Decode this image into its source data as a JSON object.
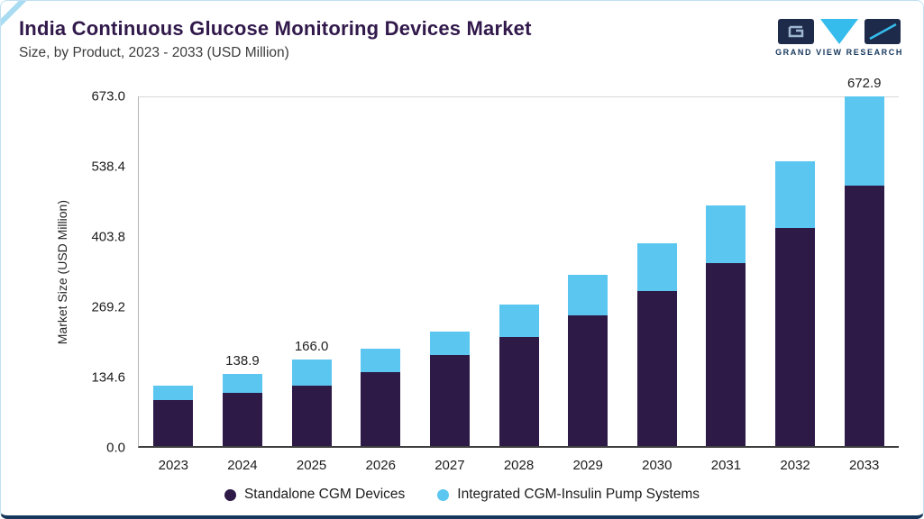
{
  "header": {
    "title": "India Continuous Glucose Monitoring Devices Market",
    "subtitle": "Size, by Product, 2023 - 2033 (USD Million)"
  },
  "logo": {
    "text": "GRAND VIEW RESEARCH"
  },
  "chart_data": {
    "type": "bar",
    "stacked": true,
    "title": "India Continuous Glucose Monitoring Devices Market Size, by Product, 2023 - 2033 (USD Million)",
    "xlabel": "",
    "ylabel": "Market Size (USD Million)",
    "ylim": [
      0,
      673.0
    ],
    "yticks": [
      "0.0",
      "134.6",
      "269.2",
      "403.8",
      "538.4",
      "673.0"
    ],
    "grid": "top-line-only",
    "legend_position": "bottom",
    "categories": [
      "2023",
      "2024",
      "2025",
      "2026",
      "2027",
      "2028",
      "2029",
      "2030",
      "2031",
      "2032",
      "2033"
    ],
    "series": [
      {
        "name": "Standalone CGM Devices",
        "color": "#2E1A47",
        "values": [
          88,
          102,
          117,
          143,
          176,
          210,
          252,
          298,
          352,
          419,
          501
        ]
      },
      {
        "name": "Integrated CGM-Insulin Pump Systems",
        "color": "#5BC6F0",
        "values": [
          28,
          36.9,
          49,
          44,
          45,
          62,
          77,
          92,
          111,
          129,
          171.9
        ]
      }
    ],
    "totals": [
      116,
      138.9,
      166.0,
      187,
      221,
      272,
      329,
      390,
      463,
      548,
      672.9
    ],
    "bar_labels": {
      "2024": "138.9",
      "2025": "166.0",
      "2033": "672.9"
    }
  },
  "legend": {
    "items": [
      {
        "label": "Standalone CGM Devices",
        "color": "#2E1A47"
      },
      {
        "label": "Integrated CGM-Insulin Pump Systems",
        "color": "#5BC6F0"
      }
    ]
  },
  "colors": {
    "accent_border": "#BEE0F2",
    "bottom_bar": "#16375C",
    "title": "#31194B"
  }
}
